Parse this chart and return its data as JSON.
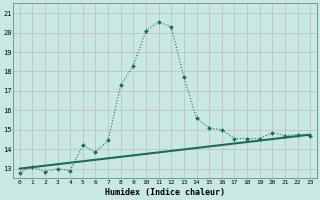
{
  "curve_x": [
    0,
    1,
    2,
    3,
    4,
    5,
    6,
    7,
    8,
    9,
    10,
    11,
    12,
    13,
    14,
    15,
    16,
    17,
    18,
    19,
    20,
    21,
    22,
    23
  ],
  "curve_y": [
    12.8,
    13.1,
    12.85,
    13.0,
    12.9,
    14.2,
    13.85,
    14.45,
    17.3,
    18.3,
    20.1,
    20.55,
    20.3,
    17.7,
    15.6,
    15.1,
    15.0,
    14.55,
    14.55,
    14.55,
    14.85,
    14.7,
    14.75,
    14.7
  ],
  "line_x": [
    0,
    23
  ],
  "line_y": [
    13.0,
    14.75
  ],
  "color": "#1a6b5a",
  "bg_color": "#c8e8e4",
  "grid_color": "#b0d8d4",
  "xlabel": "Humidex (Indice chaleur)",
  "ylim": [
    12.5,
    21.5
  ],
  "xlim": [
    -0.5,
    23.5
  ],
  "yticks": [
    13,
    14,
    15,
    16,
    17,
    18,
    19,
    20,
    21
  ],
  "xticks": [
    0,
    1,
    2,
    3,
    4,
    5,
    6,
    7,
    8,
    9,
    10,
    11,
    12,
    13,
    14,
    15,
    16,
    17,
    18,
    19,
    20,
    21,
    22,
    23
  ]
}
